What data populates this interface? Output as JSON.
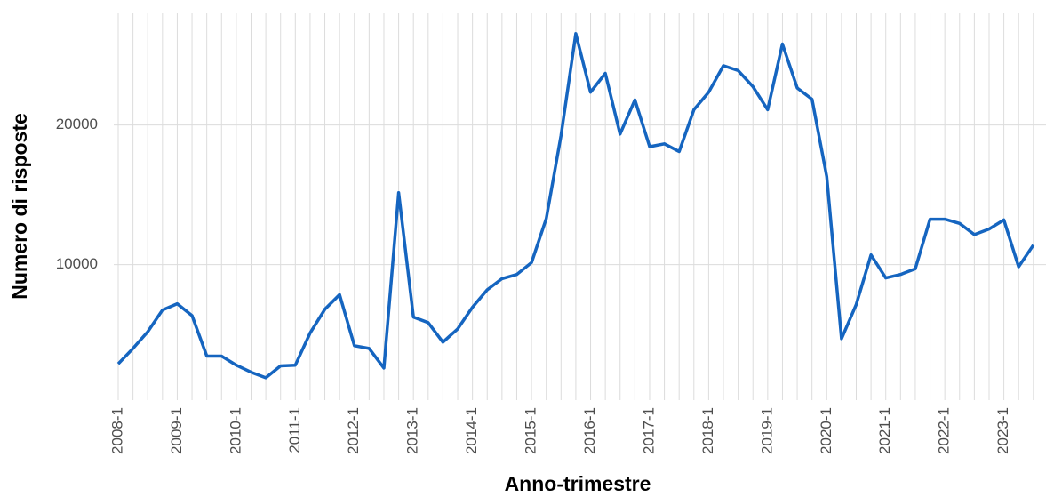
{
  "chart_data": {
    "type": "line",
    "x_label": "Anno-trimestre",
    "y_label": "Numero di risposte",
    "categories": [
      "2008-1",
      null,
      null,
      null,
      "2009-1",
      null,
      null,
      null,
      "2010-1",
      null,
      null,
      null,
      "2011-1",
      null,
      null,
      null,
      "2012-1",
      null,
      null,
      null,
      "2013-1",
      null,
      null,
      null,
      "2014-1",
      null,
      null,
      null,
      "2015-1",
      null,
      null,
      null,
      "2016-1",
      null,
      null,
      null,
      "2017-1",
      null,
      null,
      null,
      "2018-1",
      null,
      null,
      null,
      "2019-1",
      null,
      null,
      null,
      "2020-1",
      null,
      null,
      null,
      "2021-1",
      null,
      null,
      null,
      "2022-1",
      null,
      null,
      null,
      "2023-1",
      null,
      null
    ],
    "series": [
      {
        "name": "Numero di risposte",
        "color": "#1565c0",
        "values": [
          2900,
          4000,
          5200,
          6750,
          7200,
          6350,
          3450,
          3450,
          2800,
          2300,
          1900,
          2750,
          2800,
          5100,
          6800,
          7850,
          4200,
          4000,
          2600,
          15150,
          6250,
          5850,
          4450,
          5400,
          6950,
          8200,
          9000,
          9300,
          10150,
          13300,
          19250,
          26550,
          22350,
          23700,
          19350,
          21800,
          18450,
          18650,
          18100,
          21100,
          22350,
          24250,
          23900,
          22750,
          21100,
          25800,
          22650,
          21850,
          16300,
          4700,
          7150,
          10700,
          9050,
          9300,
          9700,
          13250,
          13250,
          12950,
          12150,
          12550,
          13200,
          9850,
          11400
        ]
      }
    ],
    "ylim": [
      300,
      28000
    ],
    "yticks": [
      10000,
      20000
    ],
    "grid": true
  }
}
